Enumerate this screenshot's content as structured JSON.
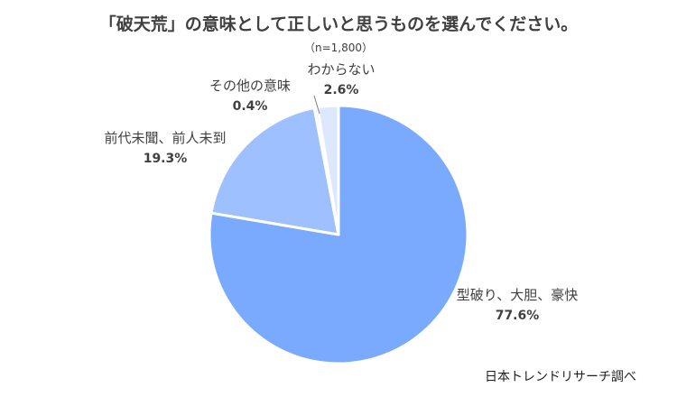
{
  "chart_data": {
    "type": "pie",
    "title": "「破天荒」の意味として正しいと思うものを選んでください。",
    "sample_size": "（n=1,800）",
    "slices": [
      {
        "label": "型破り、大胆、豪快",
        "value": 77.6,
        "value_label": "77.6%",
        "color": "#7aaafe"
      },
      {
        "label": "前代未聞、前人未到",
        "value": 19.3,
        "value_label": "19.3%",
        "color": "#9ec0ff"
      },
      {
        "label": "その他の意味",
        "value": 0.4,
        "value_label": "0.4%",
        "color": "#bcd3ff"
      },
      {
        "label": "わからない",
        "value": 2.6,
        "value_label": "2.6%",
        "color": "#dde8ff"
      }
    ],
    "source": "日本トレンドリサーチ調べ"
  }
}
